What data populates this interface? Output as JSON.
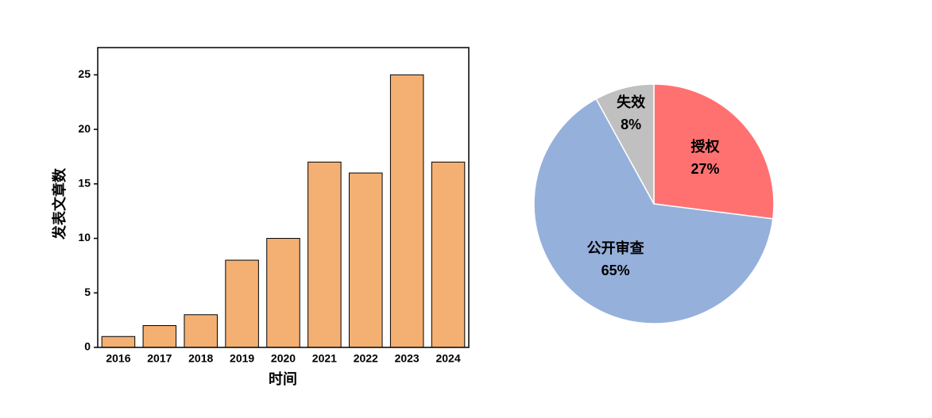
{
  "chart_data": [
    {
      "type": "bar",
      "x_label": "时间",
      "y_label": "发表文章数",
      "categories": [
        "2016",
        "2017",
        "2018",
        "2019",
        "2020",
        "2021",
        "2022",
        "2023",
        "2024"
      ],
      "values": [
        1,
        2,
        3,
        8,
        10,
        17,
        16,
        25,
        17
      ],
      "color": "#F4B073",
      "ylim": [
        0,
        27.5
      ],
      "yticks": [
        0,
        5,
        10,
        15,
        20,
        25
      ]
    },
    {
      "type": "pie",
      "categories": [
        "授权",
        "公开审查",
        "失效"
      ],
      "values": [
        27,
        65,
        8
      ],
      "value_labels": [
        "27%",
        "65%",
        "8%"
      ],
      "colors": [
        "#FF7171",
        "#96B0DC",
        "#C0C0C0"
      ]
    }
  ]
}
